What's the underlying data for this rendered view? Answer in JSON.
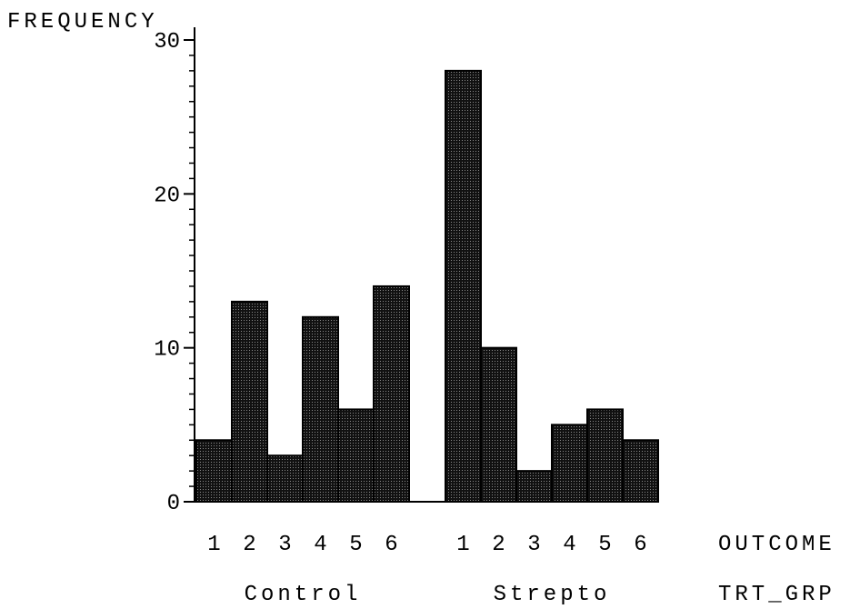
{
  "chart_data": {
    "type": "bar",
    "ylabel": "FREQUENCY",
    "ylim": [
      0,
      30
    ],
    "y_ticks": [
      "0",
      "10",
      "20",
      "30"
    ],
    "x_level1_label": "OUTCOME",
    "x_level2_label": "TRT_GRP",
    "grid": false,
    "bar_fill": "#1a1a1a",
    "groups": [
      {
        "name": "Control",
        "categories": [
          "1",
          "2",
          "3",
          "4",
          "5",
          "6"
        ],
        "values": [
          4,
          13,
          3,
          12,
          6,
          14
        ]
      },
      {
        "name": "Strepto",
        "categories": [
          "1",
          "2",
          "3",
          "4",
          "5",
          "6"
        ],
        "values": [
          28,
          10,
          2,
          5,
          6,
          4
        ]
      }
    ]
  }
}
